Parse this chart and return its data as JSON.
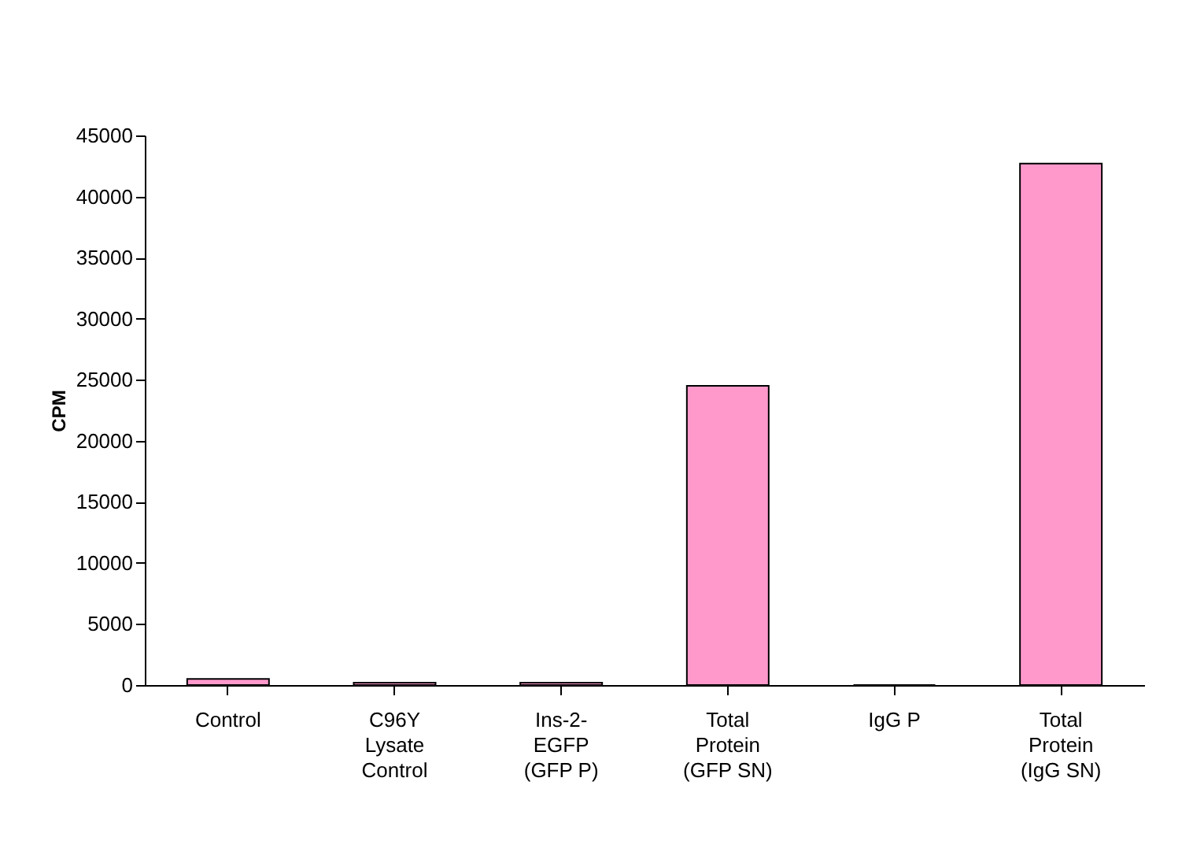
{
  "chart_data": {
    "type": "bar",
    "ylabel": "CPM",
    "categories": [
      "Control",
      "C96Y\nLysate\nControl",
      "Ins-2-\nEGFP\n(GFP P)",
      "Total\nProtein\n(GFP SN)",
      "IgG P",
      "Total\nProtein\n(IgG SN)"
    ],
    "values": [
      500,
      200,
      200,
      24500,
      0,
      42700
    ],
    "color": "#ff99cc",
    "ylim": [
      0,
      45000
    ],
    "yticks": [
      0,
      5000,
      10000,
      15000,
      20000,
      25000,
      30000,
      35000,
      40000,
      45000
    ],
    "grid": false
  }
}
